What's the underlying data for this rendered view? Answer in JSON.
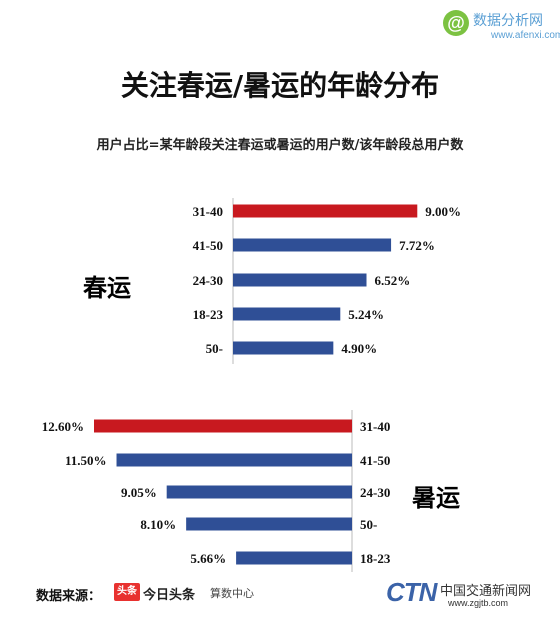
{
  "watermark": {
    "name": "数据分析网",
    "site": "www.afenxi.com"
  },
  "title": "关注春运/暑运的年龄分布",
  "subtitle": "用户占比=某年龄段关注春运或暑运的用户数/该年龄段总用户数",
  "chart_data": [
    {
      "type": "bar",
      "orientation": "horizontal",
      "section_label": "春运",
      "categories": [
        "31-40",
        "41-50",
        "24-30",
        "18-23",
        "50-"
      ],
      "values": [
        9.0,
        7.72,
        6.52,
        5.24,
        4.9
      ],
      "value_labels": [
        "9.00%",
        "7.72%",
        "6.52%",
        "5.24%",
        "4.90%"
      ],
      "unit": "%",
      "highlight_index": 0,
      "colors": {
        "highlight": "#c8191f",
        "default": "#2f4f96"
      }
    },
    {
      "type": "bar",
      "orientation": "horizontal",
      "direction": "right-to-left",
      "section_label": "暑运",
      "categories": [
        "31-40",
        "41-50",
        "24-30",
        "50-",
        "18-23"
      ],
      "values": [
        12.6,
        11.5,
        9.05,
        8.1,
        5.66
      ],
      "value_labels": [
        "12.60%",
        "11.50%",
        "9.05%",
        "8.10%",
        "5.66%"
      ],
      "unit": "%",
      "highlight_index": 0,
      "colors": {
        "highlight": "#c8191f",
        "default": "#2f4f96"
      }
    }
  ],
  "footer": {
    "source_label": "数据来源：",
    "toutiao_badge": "头条",
    "toutiao_name": "今日头条",
    "toutiao_sub": "算数中心",
    "ctn_logo": "CTN",
    "ctn_name": "中国交通新闻网",
    "ctn_url": "www.zgjtb.com"
  }
}
